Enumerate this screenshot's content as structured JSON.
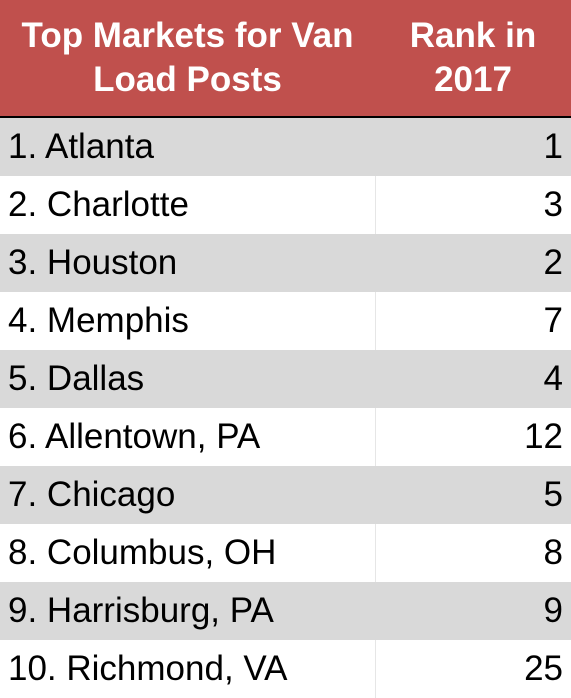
{
  "table": {
    "headers": [
      "Top Markets for Van Load Posts",
      "Rank in 2017"
    ],
    "rows": [
      {
        "market": "1. Atlanta",
        "rank": "1"
      },
      {
        "market": "2. Charlotte",
        "rank": "3"
      },
      {
        "market": "3. Houston",
        "rank": "2"
      },
      {
        "market": "4. Memphis",
        "rank": "7"
      },
      {
        "market": "5. Dallas",
        "rank": "4"
      },
      {
        "market": "6. Allentown, PA",
        "rank": "12"
      },
      {
        "market": "7. Chicago",
        "rank": "5"
      },
      {
        "market": "8. Columbus, OH",
        "rank": "8"
      },
      {
        "market": "9. Harrisburg, PA",
        "rank": "9"
      },
      {
        "market": "10. Richmond, VA",
        "rank": "25"
      }
    ]
  },
  "colors": {
    "header_bg": "#c0504d",
    "header_text": "#ffffff",
    "band_shaded": "#d9d9d9",
    "band_plain": "#ffffff"
  },
  "chart_data": {
    "type": "table",
    "columns": [
      "Top Markets for Van Load Posts",
      "Rank in 2017"
    ],
    "rows": [
      [
        "1. Atlanta",
        1
      ],
      [
        "2. Charlotte",
        3
      ],
      [
        "3. Houston",
        2
      ],
      [
        "4. Memphis",
        7
      ],
      [
        "5. Dallas",
        4
      ],
      [
        "6. Allentown, PA",
        12
      ],
      [
        "7. Chicago",
        5
      ],
      [
        "8. Columbus, OH",
        8
      ],
      [
        "9. Harrisburg, PA",
        9
      ],
      [
        "10. Richmond, VA",
        25
      ]
    ]
  }
}
